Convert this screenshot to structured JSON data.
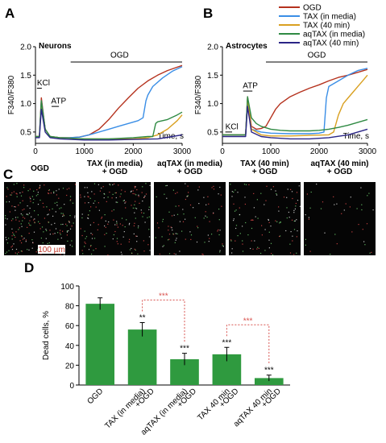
{
  "panels": {
    "A": "A",
    "B": "B",
    "C": "C",
    "D": "D"
  },
  "legend": [
    {
      "name": "OGD",
      "color": "#b5321e"
    },
    {
      "name": "TAX (in media)",
      "color": "#3a8ee6"
    },
    {
      "name": "TAX (40 min)",
      "color": "#d9a020"
    },
    {
      "name": "aqTAX (in media)",
      "color": "#2f8a43"
    },
    {
      "name": "aqTAX (40 min)",
      "color": "#2a2586"
    }
  ],
  "chart_data": [
    {
      "type": "line",
      "panel": "A",
      "title": "Neurons",
      "xlabel": "Time, s",
      "ylabel": "F340/F380",
      "xlim": [
        0,
        3000
      ],
      "ylim": [
        0.3,
        2.0
      ],
      "xticks": [
        "0",
        "1000",
        "2000",
        "3000"
      ],
      "yticks": [
        "0.5",
        "1.0",
        "1.5",
        "2.0"
      ],
      "annotations": [
        "KCl",
        "ATP",
        "OGD"
      ],
      "series": [
        {
          "name": "OGD",
          "color": "#b5321e",
          "x": [
            0,
            80,
            120,
            200,
            300,
            500,
            700,
            900,
            1100,
            1300,
            1500,
            1700,
            1900,
            2100,
            2300,
            2500,
            2700,
            2900,
            3000
          ],
          "y": [
            0.42,
            0.42,
            1.1,
            0.55,
            0.42,
            0.4,
            0.4,
            0.41,
            0.45,
            0.55,
            0.72,
            0.92,
            1.1,
            1.27,
            1.4,
            1.5,
            1.58,
            1.64,
            1.67
          ]
        },
        {
          "name": "TAX (in media)",
          "color": "#3a8ee6",
          "x": [
            0,
            80,
            120,
            200,
            300,
            500,
            700,
            900,
            1100,
            1300,
            1500,
            1700,
            1900,
            2100,
            2200,
            2260,
            2300,
            2400,
            2600,
            2800,
            3000
          ],
          "y": [
            0.42,
            0.42,
            1.05,
            0.55,
            0.42,
            0.4,
            0.4,
            0.41,
            0.45,
            0.5,
            0.55,
            0.6,
            0.65,
            0.7,
            0.75,
            1.05,
            1.15,
            1.3,
            1.45,
            1.57,
            1.65
          ]
        },
        {
          "name": "TAX (40 min)",
          "color": "#d9a020",
          "x": [
            0,
            80,
            120,
            200,
            300,
            500,
            1000,
            1500,
            2000,
            2300,
            2500,
            2700,
            2900,
            3000
          ],
          "y": [
            0.42,
            0.42,
            1.0,
            0.55,
            0.42,
            0.4,
            0.38,
            0.38,
            0.38,
            0.4,
            0.45,
            0.55,
            0.7,
            0.8
          ]
        },
        {
          "name": "aqTAX (in media)",
          "color": "#2f8a43",
          "x": [
            0,
            80,
            120,
            200,
            300,
            500,
            1000,
            1500,
            2000,
            2300,
            2400,
            2460,
            2500,
            2700,
            2900,
            3000
          ],
          "y": [
            0.42,
            0.42,
            1.05,
            0.55,
            0.42,
            0.4,
            0.38,
            0.38,
            0.4,
            0.42,
            0.42,
            0.65,
            0.68,
            0.72,
            0.8,
            0.85
          ]
        },
        {
          "name": "aqTAX (40 min)",
          "color": "#2a2586",
          "x": [
            0,
            80,
            120,
            200,
            300,
            500,
            1000,
            1500,
            2000,
            2500,
            2800,
            3000
          ],
          "y": [
            0.4,
            0.4,
            0.9,
            0.5,
            0.4,
            0.38,
            0.36,
            0.36,
            0.37,
            0.38,
            0.42,
            0.45
          ]
        }
      ]
    },
    {
      "type": "line",
      "panel": "B",
      "title": "Astrocytes",
      "xlabel": "Time, s",
      "ylabel": "F340/F380",
      "xlim": [
        0,
        3000
      ],
      "ylim": [
        0.3,
        2.0
      ],
      "xticks": [
        "0",
        "1000",
        "2000",
        "3000"
      ],
      "yticks": [
        "0.5",
        "1.0",
        "1.5",
        "2.0"
      ],
      "annotations": [
        "KCl",
        "ATP",
        "OGD"
      ],
      "series": [
        {
          "name": "OGD",
          "color": "#b5321e",
          "x": [
            0,
            300,
            480,
            520,
            600,
            700,
            800,
            900,
            1000,
            1100,
            1200,
            1400,
            1600,
            1800,
            2000,
            2200,
            2400,
            2600,
            2800,
            3000
          ],
          "y": [
            0.45,
            0.45,
            0.45,
            1.12,
            0.6,
            0.55,
            0.56,
            0.6,
            0.75,
            0.9,
            1.0,
            1.12,
            1.2,
            1.27,
            1.33,
            1.4,
            1.46,
            1.5,
            1.55,
            1.6
          ]
        },
        {
          "name": "TAX (in media)",
          "color": "#3a8ee6",
          "x": [
            0,
            300,
            480,
            520,
            600,
            800,
            1000,
            1400,
            1800,
            2000,
            2100,
            2150,
            2200,
            2400,
            2600,
            2800,
            3000
          ],
          "y": [
            0.45,
            0.45,
            0.45,
            1.1,
            0.55,
            0.5,
            0.48,
            0.47,
            0.47,
            0.48,
            0.5,
            1.1,
            1.3,
            1.4,
            1.5,
            1.58,
            1.62
          ]
        },
        {
          "name": "TAX (40 min)",
          "color": "#d9a020",
          "x": [
            0,
            300,
            480,
            520,
            600,
            800,
            1000,
            1400,
            1800,
            2200,
            2300,
            2400,
            2500,
            2600,
            2700,
            2800,
            2900,
            3000
          ],
          "y": [
            0.45,
            0.45,
            0.45,
            1.1,
            0.55,
            0.45,
            0.43,
            0.43,
            0.44,
            0.45,
            0.5,
            0.8,
            1.0,
            1.1,
            1.2,
            1.3,
            1.4,
            1.5
          ]
        },
        {
          "name": "aqTAX (in media)",
          "color": "#2f8a43",
          "x": [
            0,
            300,
            480,
            520,
            600,
            700,
            800,
            1000,
            1200,
            1400,
            1600,
            1800,
            2000,
            2200,
            2400,
            2600,
            2800,
            3000
          ],
          "y": [
            0.45,
            0.45,
            0.45,
            1.12,
            0.75,
            0.65,
            0.6,
            0.55,
            0.53,
            0.52,
            0.52,
            0.52,
            0.53,
            0.55,
            0.58,
            0.62,
            0.67,
            0.72
          ]
        },
        {
          "name": "aqTAX (40 min)",
          "color": "#2a2586",
          "x": [
            0,
            300,
            480,
            520,
            600,
            800,
            1000,
            1400,
            1800,
            2200,
            2600,
            2800,
            3000
          ],
          "y": [
            0.42,
            0.42,
            0.42,
            0.95,
            0.5,
            0.42,
            0.4,
            0.38,
            0.38,
            0.4,
            0.45,
            0.5,
            0.55
          ]
        }
      ]
    },
    {
      "type": "bar",
      "panel": "D",
      "ylabel": "Dead cells, %",
      "ylim": [
        0,
        100
      ],
      "yticks": [
        "0",
        "20",
        "40",
        "60",
        "80",
        "100"
      ],
      "categories": [
        "OGD",
        "TAX (in media)\n+OGD",
        "aqTAX (in media)\n+OGD",
        "TAX 40 min\n+OGD",
        "aqTAX 40 min\n+OGD"
      ],
      "values": [
        82,
        56,
        26,
        31,
        7
      ],
      "errors": [
        6,
        7,
        6,
        7,
        3
      ],
      "significance": [
        "",
        "**",
        "***",
        "***",
        "***"
      ],
      "brackets": [
        {
          "from": 1,
          "to": 2,
          "label": "***"
        },
        {
          "from": 3,
          "to": 4,
          "label": "***"
        }
      ],
      "color": "#2f9a3f"
    }
  ],
  "micrographs": {
    "titles": [
      "OGD",
      "TAX (in media)\n+ OGD",
      "aqTAX (in media)\n+ OGD",
      "TAX (40 min)\n+ OGD",
      "aqTAX (40 min)\n+ OGD"
    ],
    "scale_bar": "100 µm",
    "density": [
      0.9,
      0.7,
      0.4,
      0.45,
      0.15
    ]
  }
}
